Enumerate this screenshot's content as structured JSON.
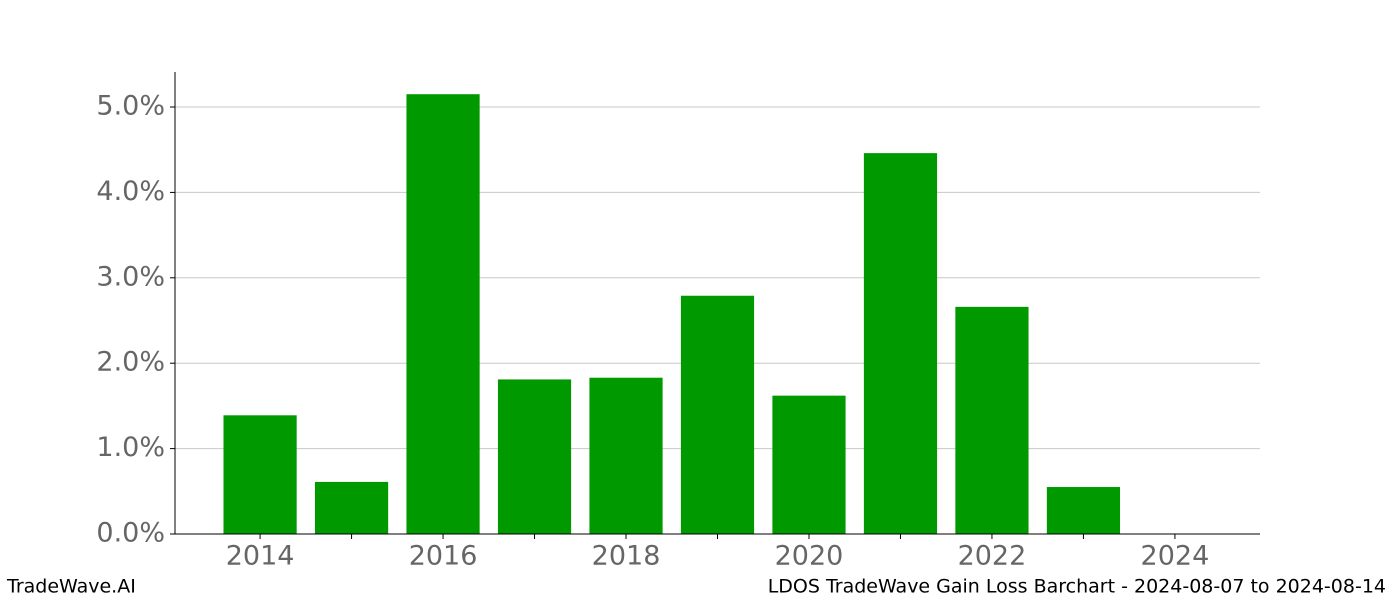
{
  "chart_data": {
    "type": "bar",
    "x": [
      2014,
      2015,
      2016,
      2017,
      2018,
      2019,
      2020,
      2021,
      2022,
      2023
    ],
    "values": [
      1.39,
      0.61,
      5.15,
      1.81,
      1.83,
      2.79,
      1.62,
      4.46,
      2.66,
      0.55
    ],
    "color": "#009900",
    "xlim": [
      2013.07,
      2024.93
    ],
    "xticks": [
      2014,
      2016,
      2018,
      2020,
      2022,
      2024
    ],
    "xminorticks": [
      2015,
      2017,
      2019,
      2021,
      2023
    ],
    "ylim": [
      0,
      5.41
    ],
    "yticks": [
      {
        "value": 0,
        "label": "0.0%"
      },
      {
        "value": 1,
        "label": "1.0%"
      },
      {
        "value": 2,
        "label": "2.0%"
      },
      {
        "value": 3,
        "label": "3.0%"
      },
      {
        "value": 4,
        "label": "4.0%"
      },
      {
        "value": 5,
        "label": "5.0%"
      }
    ],
    "grid": true,
    "footer_left": "TradeWave.AI",
    "footer_right": "LDOS TradeWave Gain Loss Barchart - 2024-08-07 to 2024-08-14"
  }
}
